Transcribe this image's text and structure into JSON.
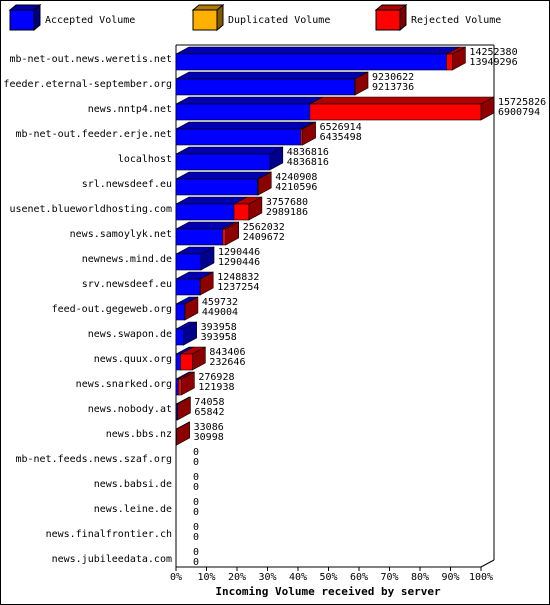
{
  "chart_data": {
    "type": "bar",
    "orientation": "horizontal",
    "stacked": true,
    "depth3d": true,
    "xlabel": "Incoming Volume received by server",
    "categories": [
      "mb-net-out.news.weretis.net",
      "feeder.eternal-september.org",
      "news.nntp4.net",
      "mb-net-out.feeder.erje.net",
      "localhost",
      "srl.newsdeef.eu",
      "usenet.blueworldhosting.com",
      "news.samoylyk.net",
      "newnews.mind.de",
      "srv.newsdeef.eu",
      "feed-out.gegeweb.org",
      "news.swapon.de",
      "news.quux.org",
      "news.snarked.org",
      "news.nobody.at",
      "news.bbs.nz",
      "mb-net.feeds.news.szaf.org",
      "news.babsi.de",
      "news.leine.de",
      "news.finalfrontier.ch",
      "news.jubileedata.com"
    ],
    "series": [
      {
        "name": "Accepted Volume",
        "color": "#0000ff",
        "values": [
          13949296,
          9213736,
          6900794,
          6435498,
          4836816,
          4210596,
          2989186,
          2409672,
          1290446,
          1237254,
          449004,
          393958,
          232646,
          121938,
          65842,
          30998,
          0,
          0,
          0,
          0,
          0
        ]
      },
      {
        "name": "Duplicated Volume",
        "color": "#ffb000",
        "values": [
          0,
          0,
          0,
          0,
          0,
          0,
          0,
          0,
          0,
          0,
          0,
          0,
          0,
          0,
          0,
          0,
          0,
          0,
          0,
          0,
          0
        ]
      },
      {
        "name": "Rejected Volume",
        "color": "#ff0000",
        "values": [
          303084,
          16886,
          8825032,
          91416,
          0,
          30312,
          768494,
          152360,
          0,
          11578,
          10728,
          0,
          610760,
          154990,
          8216,
          2088,
          0,
          0,
          0,
          0,
          0
        ]
      }
    ],
    "totals": [
      14252380,
      9230622,
      15725826,
      6526914,
      4836816,
      4240908,
      3757680,
      2562032,
      1290446,
      1248832,
      459732,
      393958,
      843406,
      276928,
      74058,
      33086,
      0,
      0,
      0,
      0,
      0
    ],
    "xlim": [
      0,
      15725826
    ],
    "xticks": [
      {
        "value": 0,
        "label": "0%"
      },
      {
        "value": 1572582.6,
        "label": "10%"
      },
      {
        "value": 3145165.2,
        "label": "20%"
      },
      {
        "value": 4717747.8,
        "label": "30%"
      },
      {
        "value": 6290330.4,
        "label": "40%"
      },
      {
        "value": 7862913,
        "label": "50%"
      },
      {
        "value": 9435495.6,
        "label": "60%"
      },
      {
        "value": 11008078.2,
        "label": "70%"
      },
      {
        "value": 12580660.8,
        "label": "80%"
      },
      {
        "value": 14153243.4,
        "label": "90%"
      },
      {
        "value": 15725826,
        "label": "100%"
      }
    ]
  }
}
